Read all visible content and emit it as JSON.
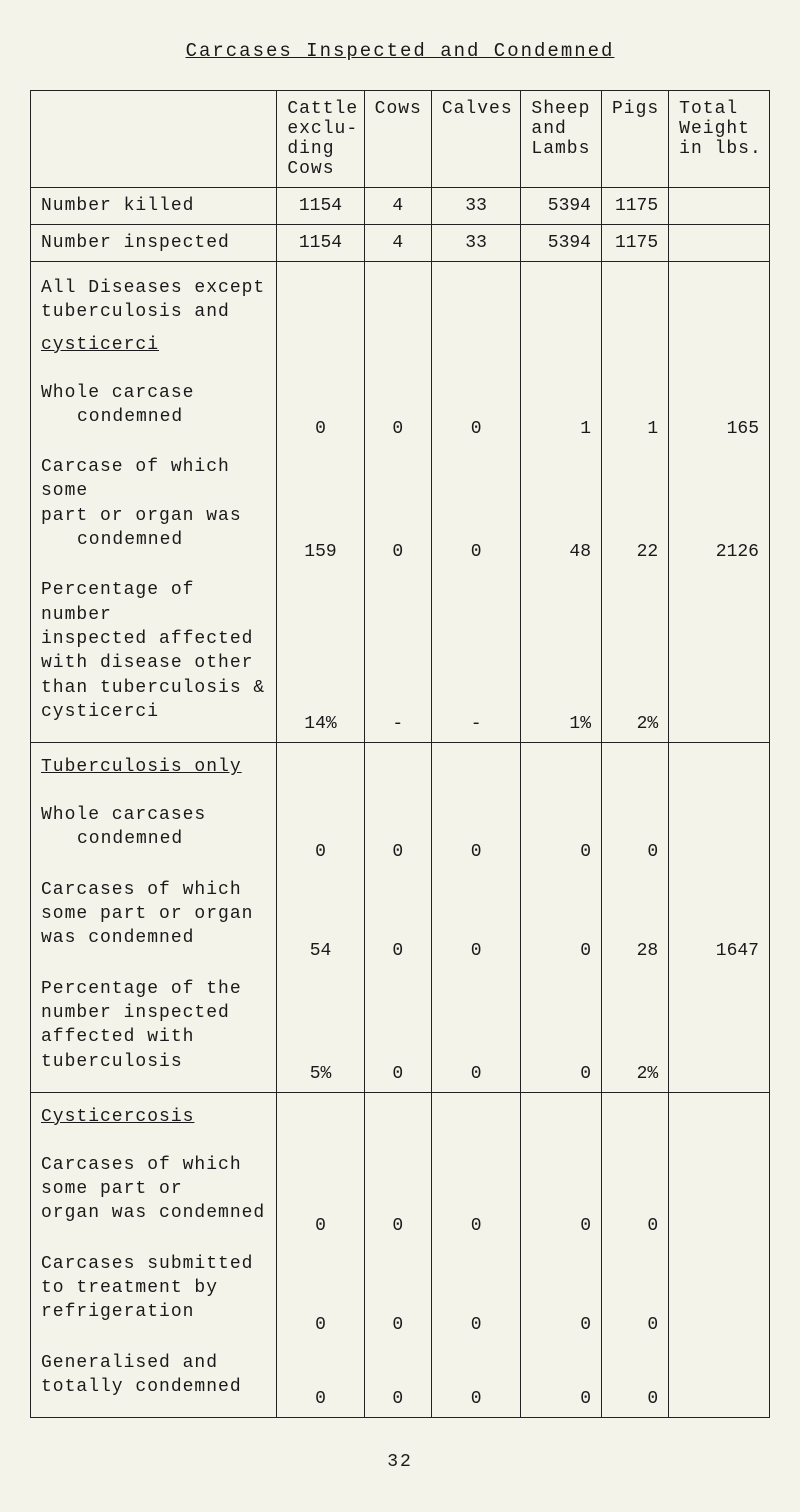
{
  "title": "Carcases Inspected and Condemned",
  "headers": {
    "cattle": "Cattle exclu-ding Cows",
    "cows": "Cows",
    "calves": "Calves",
    "sheep": "Sheep and Lambs",
    "pigs": "Pigs",
    "weight": "Total Weight in lbs."
  },
  "rows": {
    "number_killed": {
      "label": "Number killed",
      "cattle": "1154",
      "cows": "4",
      "calves": "33",
      "sheep": "5394",
      "pigs": "1175",
      "weight": ""
    },
    "number_inspected": {
      "label": "Number inspected",
      "cattle": "1154",
      "cows": "4",
      "calves": "33",
      "sheep": "5394",
      "pigs": "1175",
      "weight": ""
    },
    "section1_head": "All Diseases except tuberculosis and",
    "section1_head2": "cysticerci",
    "whole_carcase": {
      "label1": "Whole carcase",
      "label2": "condemned",
      "cattle": "0",
      "cows": "0",
      "calves": "0",
      "sheep": "1",
      "pigs": "1",
      "weight": "165"
    },
    "carcase_part": {
      "label1": "Carcase of which some",
      "label2": "part or organ was",
      "label3": "condemned",
      "cattle": "159",
      "cows": "0",
      "calves": "0",
      "sheep": "48",
      "pigs": "22",
      "weight": "2126"
    },
    "pct1": {
      "label1": "Percentage of number",
      "label2": "inspected affected",
      "label3": "with disease other",
      "label4": "than tuberculosis &",
      "label5": "cysticerci",
      "cattle": "14%",
      "cows": "-",
      "calves": "-",
      "sheep": "1%",
      "pigs": "2%",
      "weight": ""
    },
    "section2_head": "Tuberculosis only",
    "tb_whole": {
      "label1": "Whole carcases",
      "label2": "condemned",
      "cattle": "0",
      "cows": "0",
      "calves": "0",
      "sheep": "0",
      "pigs": "0",
      "weight": ""
    },
    "tb_part": {
      "label1": "Carcases of which",
      "label2": "some part or organ",
      "label3": "was condemned",
      "cattle": "54",
      "cows": "0",
      "calves": "0",
      "sheep": "0",
      "pigs": "28",
      "weight": "1647"
    },
    "tb_pct": {
      "label1": "Percentage of the",
      "label2": "number inspected",
      "label3": "affected with",
      "label4": "tuberculosis",
      "cattle": "5%",
      "cows": "0",
      "calves": "0",
      "sheep": "0",
      "pigs": "2%",
      "weight": ""
    },
    "section3_head": "Cysticercosis",
    "cy_part": {
      "label1": "Carcases of which",
      "label2": "some part or",
      "label3": "organ was condemned",
      "cattle": "0",
      "cows": "0",
      "calves": "0",
      "sheep": "0",
      "pigs": "0",
      "weight": ""
    },
    "cy_refrig": {
      "label1": "Carcases submitted",
      "label2": "to treatment by",
      "label3": "refrigeration",
      "cattle": "0",
      "cows": "0",
      "calves": "0",
      "sheep": "0",
      "pigs": "0",
      "weight": ""
    },
    "cy_gen": {
      "label1": "Generalised and",
      "label2": "totally condemned",
      "cattle": "0",
      "cows": "0",
      "calves": "0",
      "sheep": "0",
      "pigs": "0",
      "weight": ""
    }
  },
  "page_number": "32"
}
